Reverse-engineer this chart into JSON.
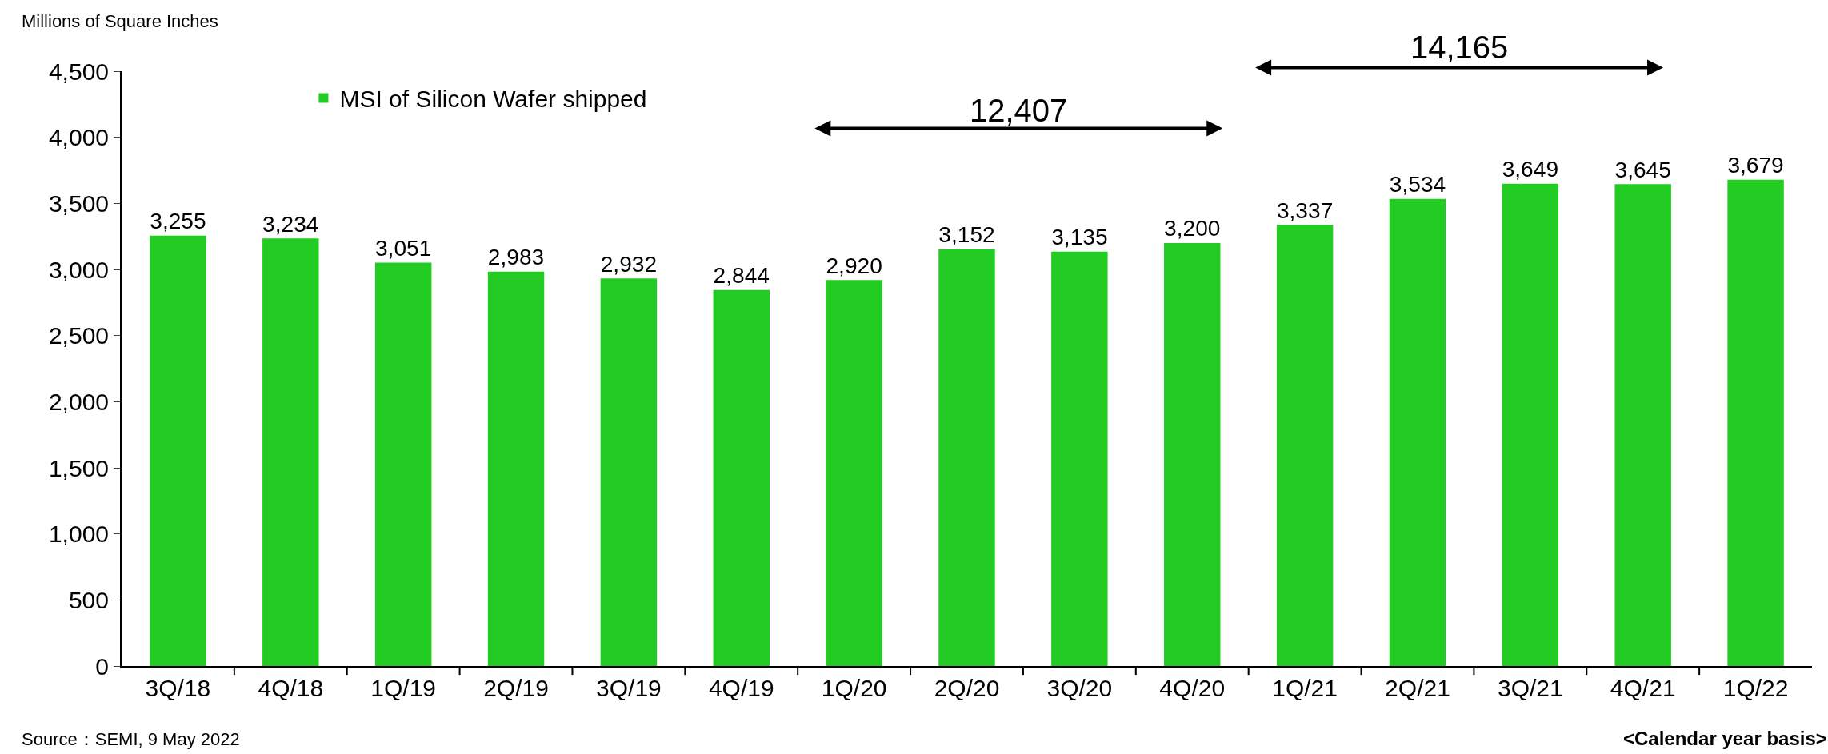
{
  "chart_data": {
    "type": "bar",
    "ylabel": "Millions of Square Inches",
    "categories": [
      "3Q/18",
      "4Q/18",
      "1Q/19",
      "2Q/19",
      "3Q/19",
      "4Q/19",
      "1Q/20",
      "2Q/20",
      "3Q/20",
      "4Q/20",
      "1Q/21",
      "2Q/21",
      "3Q/21",
      "4Q/21",
      "1Q/22"
    ],
    "series": [
      {
        "name": "MSI of Silicon Wafer shipped",
        "color": "#22cc22",
        "values": [
          3255,
          3234,
          3051,
          2983,
          2932,
          2844,
          2920,
          3152,
          3135,
          3200,
          3337,
          3534,
          3649,
          3645,
          3679
        ],
        "value_labels": [
          "3,255",
          "3,234",
          "3,051",
          "2,983",
          "2,932",
          "2,844",
          "2,920",
          "3,152",
          "3,135",
          "3,200",
          "3,337",
          "3,534",
          "3,649",
          "3,645",
          "3,679"
        ]
      }
    ],
    "ylim": [
      0,
      4500
    ],
    "yticks": [
      {
        "value": 0,
        "label": "0"
      },
      {
        "value": 500,
        "label": "500"
      },
      {
        "value": 1000,
        "label": "1,000"
      },
      {
        "value": 1500,
        "label": "1,500"
      },
      {
        "value": 2000,
        "label": "2,000"
      },
      {
        "value": 2500,
        "label": "2,500"
      },
      {
        "value": 3000,
        "label": "3,000"
      },
      {
        "value": 3500,
        "label": "3,500"
      },
      {
        "value": 4000,
        "label": "4,000"
      },
      {
        "value": 4500,
        "label": "4,500"
      }
    ],
    "grid": false,
    "legend": "top left",
    "annotations": [
      "12,407",
      "14,165",
      "Source：SEMI, 9 May 2022",
      "<Calendar year basis>"
    ]
  }
}
